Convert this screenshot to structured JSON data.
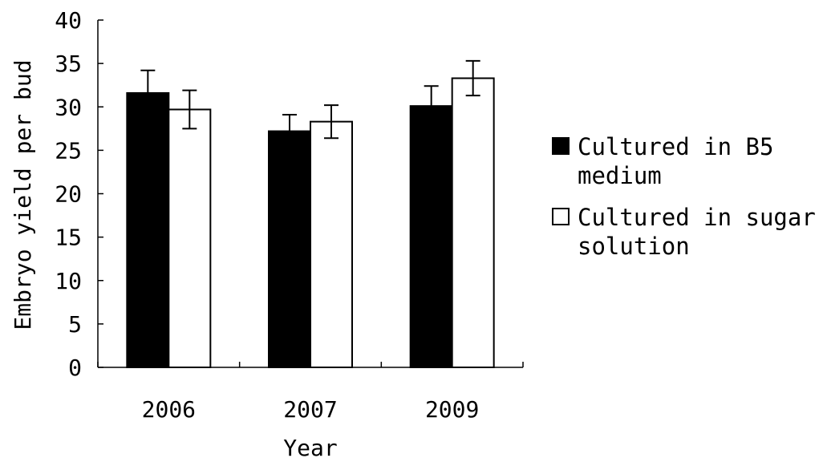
{
  "chart_data": {
    "type": "bar",
    "title": "",
    "xlabel": "Year",
    "ylabel": "Embryo yield per bud",
    "categories": [
      "2006",
      "2007",
      "2009"
    ],
    "ylim": [
      0,
      40
    ],
    "yticks": [
      0,
      5,
      10,
      15,
      20,
      25,
      30,
      35,
      40
    ],
    "grid": false,
    "legend_position": "right",
    "series": [
      {
        "name": "Cultured in B5 medium",
        "legend_lines": [
          "Cultured in B5",
          "medium"
        ],
        "fill": "#000000",
        "values": [
          31.6,
          27.2,
          30.1
        ],
        "errors": [
          2.6,
          1.9,
          2.3
        ]
      },
      {
        "name": "Cultured in sugar solution",
        "legend_lines": [
          "Cultured in sugar",
          "solution"
        ],
        "fill": "#ffffff",
        "values": [
          29.7,
          28.3,
          33.3
        ],
        "errors": [
          2.2,
          1.9,
          2.0
        ]
      }
    ]
  }
}
